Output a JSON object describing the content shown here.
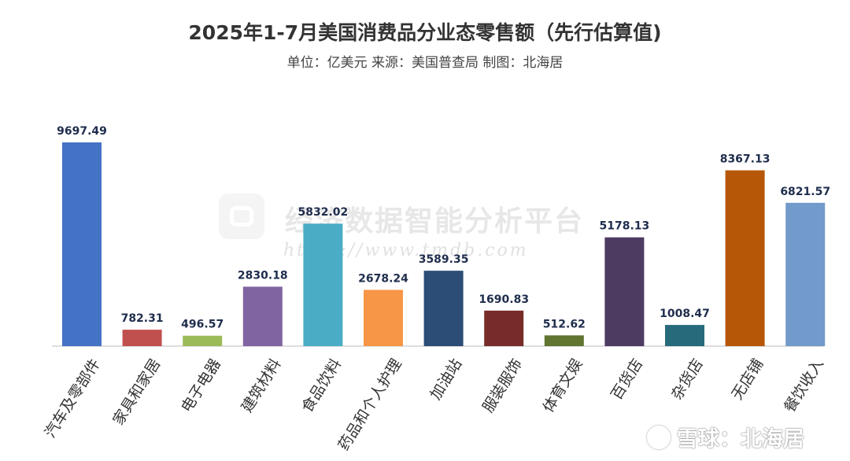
{
  "title": "2025年1-7月美国消费品分业态零售额（先行估算值)",
  "subtitle": "单位：亿美元 来源：美国普查局 制图：北海居",
  "watermark": {
    "text": "经济数据智能分析平台",
    "url": "https://www.tmdb.com"
  },
  "social": "雪球：北海居",
  "chart_data": {
    "type": "bar",
    "title": "2025年1-7月美国消费品分业态零售额（先行估算值)",
    "unit": "亿美元",
    "categories": [
      "汽车及零部件",
      "家具和家居",
      "电子电器",
      "建筑材料",
      "食品饮料",
      "药品和个人护理",
      "加油站",
      "服装服饰",
      "体育文娱",
      "百货店",
      "杂货店",
      "无店铺",
      "餐饮收入"
    ],
    "values": [
      9697.49,
      782.31,
      496.57,
      2830.18,
      5832.02,
      2678.24,
      3589.35,
      1690.83,
      512.62,
      5178.13,
      1008.47,
      8367.13,
      6821.57
    ],
    "value_labels": [
      "9697.49",
      "782.31",
      "496.57",
      "2830.18",
      "5832.02",
      "2678.24",
      "3589.35",
      "1690.83",
      "512.62",
      "5178.13",
      "1008.47",
      "8367.13",
      "6821.57"
    ],
    "colors": [
      "#4472c4",
      "#c0504d",
      "#9bbb59",
      "#8064a2",
      "#4bacc6",
      "#f79646",
      "#2c4d75",
      "#772c2a",
      "#5f7530",
      "#4d3b62",
      "#276a7c",
      "#b65708",
      "#729aca"
    ],
    "ylim": [
      0,
      9697.49
    ],
    "grid": false,
    "legend": "none"
  }
}
